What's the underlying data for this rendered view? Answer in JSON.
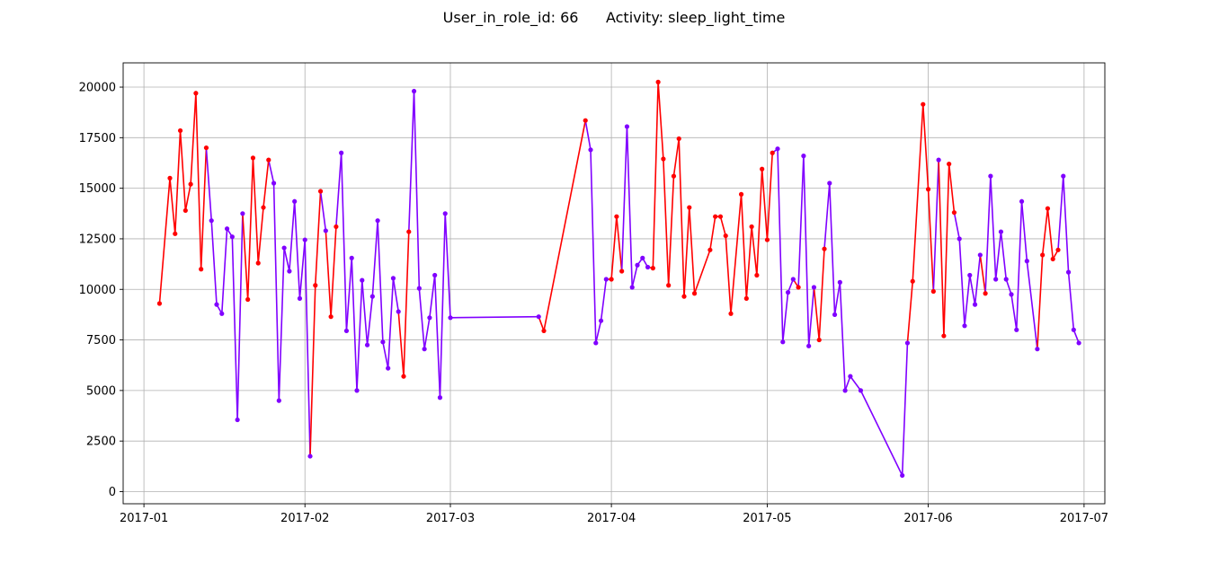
{
  "chart_data": {
    "type": "line",
    "title": "User_in_role_id: 66      Activity: sleep_light_time",
    "xlabel": "",
    "ylabel": "",
    "x_axis": "date",
    "xlim": [
      "2016-12-28",
      "2017-07-05"
    ],
    "ylim": [
      -600,
      21200
    ],
    "grid": true,
    "x_ticks": [
      "2017-01",
      "2017-02",
      "2017-03",
      "2017-04",
      "2017-05",
      "2017-06",
      "2017-07"
    ],
    "y_ticks": [
      0,
      2500,
      5000,
      7500,
      10000,
      12500,
      15000,
      17500,
      20000
    ],
    "colors": {
      "red": "#ff0000",
      "purple": "#8000ff"
    },
    "points": [
      {
        "x": "2017-01-04",
        "y": 9300,
        "c": "red"
      },
      {
        "x": "2017-01-06",
        "y": 15500,
        "c": "red"
      },
      {
        "x": "2017-01-07",
        "y": 12750,
        "c": "red"
      },
      {
        "x": "2017-01-08",
        "y": 17850,
        "c": "red"
      },
      {
        "x": "2017-01-09",
        "y": 13900,
        "c": "red"
      },
      {
        "x": "2017-01-10",
        "y": 15200,
        "c": "red"
      },
      {
        "x": "2017-01-11",
        "y": 19700,
        "c": "red"
      },
      {
        "x": "2017-01-12",
        "y": 11000,
        "c": "red"
      },
      {
        "x": "2017-01-13",
        "y": 17000,
        "c": "red"
      },
      {
        "x": "2017-01-14",
        "y": 13400,
        "c": "purple"
      },
      {
        "x": "2017-01-15",
        "y": 9250,
        "c": "purple"
      },
      {
        "x": "2017-01-16",
        "y": 8800,
        "c": "purple"
      },
      {
        "x": "2017-01-17",
        "y": 13000,
        "c": "purple"
      },
      {
        "x": "2017-01-18",
        "y": 12600,
        "c": "purple"
      },
      {
        "x": "2017-01-19",
        "y": 3550,
        "c": "purple"
      },
      {
        "x": "2017-01-20",
        "y": 13750,
        "c": "purple"
      },
      {
        "x": "2017-01-21",
        "y": 9500,
        "c": "red"
      },
      {
        "x": "2017-01-22",
        "y": 16500,
        "c": "red"
      },
      {
        "x": "2017-01-23",
        "y": 11300,
        "c": "red"
      },
      {
        "x": "2017-01-24",
        "y": 14050,
        "c": "red"
      },
      {
        "x": "2017-01-25",
        "y": 16400,
        "c": "red"
      },
      {
        "x": "2017-01-26",
        "y": 15250,
        "c": "purple"
      },
      {
        "x": "2017-01-27",
        "y": 4500,
        "c": "purple"
      },
      {
        "x": "2017-01-28",
        "y": 12050,
        "c": "purple"
      },
      {
        "x": "2017-01-29",
        "y": 10900,
        "c": "purple"
      },
      {
        "x": "2017-01-30",
        "y": 14350,
        "c": "purple"
      },
      {
        "x": "2017-01-31",
        "y": 9550,
        "c": "purple"
      },
      {
        "x": "2017-02-01",
        "y": 12450,
        "c": "purple"
      },
      {
        "x": "2017-02-02",
        "y": 1750,
        "c": "purple"
      },
      {
        "x": "2017-02-03",
        "y": 10200,
        "c": "red"
      },
      {
        "x": "2017-02-04",
        "y": 14850,
        "c": "red"
      },
      {
        "x": "2017-02-05",
        "y": 12900,
        "c": "purple"
      },
      {
        "x": "2017-02-06",
        "y": 8650,
        "c": "red"
      },
      {
        "x": "2017-02-07",
        "y": 13100,
        "c": "red"
      },
      {
        "x": "2017-02-08",
        "y": 16750,
        "c": "purple"
      },
      {
        "x": "2017-02-09",
        "y": 7950,
        "c": "purple"
      },
      {
        "x": "2017-02-10",
        "y": 11550,
        "c": "purple"
      },
      {
        "x": "2017-02-11",
        "y": 5000,
        "c": "purple"
      },
      {
        "x": "2017-02-12",
        "y": 10450,
        "c": "purple"
      },
      {
        "x": "2017-02-13",
        "y": 7250,
        "c": "purple"
      },
      {
        "x": "2017-02-14",
        "y": 9650,
        "c": "purple"
      },
      {
        "x": "2017-02-15",
        "y": 13400,
        "c": "purple"
      },
      {
        "x": "2017-02-16",
        "y": 7400,
        "c": "purple"
      },
      {
        "x": "2017-02-17",
        "y": 6100,
        "c": "purple"
      },
      {
        "x": "2017-02-18",
        "y": 10550,
        "c": "purple"
      },
      {
        "x": "2017-02-19",
        "y": 8900,
        "c": "purple"
      },
      {
        "x": "2017-02-20",
        "y": 5700,
        "c": "red"
      },
      {
        "x": "2017-02-21",
        "y": 12850,
        "c": "red"
      },
      {
        "x": "2017-02-22",
        "y": 19800,
        "c": "purple"
      },
      {
        "x": "2017-02-23",
        "y": 10050,
        "c": "purple"
      },
      {
        "x": "2017-02-24",
        "y": 7050,
        "c": "purple"
      },
      {
        "x": "2017-02-25",
        "y": 8600,
        "c": "purple"
      },
      {
        "x": "2017-02-26",
        "y": 10700,
        "c": "purple"
      },
      {
        "x": "2017-02-27",
        "y": 4650,
        "c": "purple"
      },
      {
        "x": "2017-02-28",
        "y": 13750,
        "c": "purple"
      },
      {
        "x": "2017-03-01",
        "y": 8600,
        "c": "purple"
      },
      {
        "x": "2017-03-18",
        "y": 8650,
        "c": "purple"
      },
      {
        "x": "2017-03-19",
        "y": 7950,
        "c": "red"
      },
      {
        "x": "2017-03-27",
        "y": 18350,
        "c": "red"
      },
      {
        "x": "2017-03-28",
        "y": 16900,
        "c": "purple"
      },
      {
        "x": "2017-03-29",
        "y": 7350,
        "c": "purple"
      },
      {
        "x": "2017-03-30",
        "y": 8450,
        "c": "purple"
      },
      {
        "x": "2017-03-31",
        "y": 10500,
        "c": "purple"
      },
      {
        "x": "2017-04-01",
        "y": 10500,
        "c": "red"
      },
      {
        "x": "2017-04-02",
        "y": 13600,
        "c": "red"
      },
      {
        "x": "2017-04-03",
        "y": 10900,
        "c": "red"
      },
      {
        "x": "2017-04-04",
        "y": 18050,
        "c": "purple"
      },
      {
        "x": "2017-04-05",
        "y": 10100,
        "c": "purple"
      },
      {
        "x": "2017-04-06",
        "y": 11200,
        "c": "purple"
      },
      {
        "x": "2017-04-07",
        "y": 11550,
        "c": "purple"
      },
      {
        "x": "2017-04-08",
        "y": 11100,
        "c": "purple"
      },
      {
        "x": "2017-04-09",
        "y": 11050,
        "c": "red"
      },
      {
        "x": "2017-04-10",
        "y": 20250,
        "c": "red"
      },
      {
        "x": "2017-04-11",
        "y": 16450,
        "c": "red"
      },
      {
        "x": "2017-04-12",
        "y": 10200,
        "c": "red"
      },
      {
        "x": "2017-04-13",
        "y": 15600,
        "c": "red"
      },
      {
        "x": "2017-04-14",
        "y": 17450,
        "c": "red"
      },
      {
        "x": "2017-04-15",
        "y": 9650,
        "c": "red"
      },
      {
        "x": "2017-04-16",
        "y": 14050,
        "c": "red"
      },
      {
        "x": "2017-04-17",
        "y": 9800,
        "c": "red"
      },
      {
        "x": "2017-04-20",
        "y": 11950,
        "c": "red"
      },
      {
        "x": "2017-04-21",
        "y": 13600,
        "c": "red"
      },
      {
        "x": "2017-04-22",
        "y": 13600,
        "c": "red"
      },
      {
        "x": "2017-04-23",
        "y": 12650,
        "c": "red"
      },
      {
        "x": "2017-04-24",
        "y": 8800,
        "c": "red"
      },
      {
        "x": "2017-04-26",
        "y": 14700,
        "c": "red"
      },
      {
        "x": "2017-04-27",
        "y": 9550,
        "c": "red"
      },
      {
        "x": "2017-04-28",
        "y": 13100,
        "c": "red"
      },
      {
        "x": "2017-04-29",
        "y": 10700,
        "c": "red"
      },
      {
        "x": "2017-04-30",
        "y": 15950,
        "c": "red"
      },
      {
        "x": "2017-05-01",
        "y": 12450,
        "c": "red"
      },
      {
        "x": "2017-05-02",
        "y": 16750,
        "c": "red"
      },
      {
        "x": "2017-05-03",
        "y": 16950,
        "c": "purple"
      },
      {
        "x": "2017-05-04",
        "y": 7400,
        "c": "purple"
      },
      {
        "x": "2017-05-05",
        "y": 9850,
        "c": "purple"
      },
      {
        "x": "2017-05-06",
        "y": 10500,
        "c": "purple"
      },
      {
        "x": "2017-05-07",
        "y": 10100,
        "c": "red"
      },
      {
        "x": "2017-05-08",
        "y": 16600,
        "c": "purple"
      },
      {
        "x": "2017-05-09",
        "y": 7200,
        "c": "purple"
      },
      {
        "x": "2017-05-10",
        "y": 10100,
        "c": "purple"
      },
      {
        "x": "2017-05-11",
        "y": 7500,
        "c": "red"
      },
      {
        "x": "2017-05-12",
        "y": 12000,
        "c": "red"
      },
      {
        "x": "2017-05-13",
        "y": 15250,
        "c": "purple"
      },
      {
        "x": "2017-05-14",
        "y": 8750,
        "c": "purple"
      },
      {
        "x": "2017-05-15",
        "y": 10350,
        "c": "purple"
      },
      {
        "x": "2017-05-16",
        "y": 5000,
        "c": "purple"
      },
      {
        "x": "2017-05-17",
        "y": 5700,
        "c": "purple"
      },
      {
        "x": "2017-05-19",
        "y": 5000,
        "c": "purple"
      },
      {
        "x": "2017-05-27",
        "y": 800,
        "c": "purple"
      },
      {
        "x": "2017-05-28",
        "y": 7350,
        "c": "purple"
      },
      {
        "x": "2017-05-29",
        "y": 10400,
        "c": "red"
      },
      {
        "x": "2017-05-31",
        "y": 19150,
        "c": "red"
      },
      {
        "x": "2017-06-01",
        "y": 14950,
        "c": "red"
      },
      {
        "x": "2017-06-02",
        "y": 9900,
        "c": "red"
      },
      {
        "x": "2017-06-03",
        "y": 16400,
        "c": "purple"
      },
      {
        "x": "2017-06-04",
        "y": 7700,
        "c": "red"
      },
      {
        "x": "2017-06-05",
        "y": 16200,
        "c": "red"
      },
      {
        "x": "2017-06-06",
        "y": 13800,
        "c": "red"
      },
      {
        "x": "2017-06-07",
        "y": 12500,
        "c": "purple"
      },
      {
        "x": "2017-06-08",
        "y": 8200,
        "c": "purple"
      },
      {
        "x": "2017-06-09",
        "y": 10700,
        "c": "purple"
      },
      {
        "x": "2017-06-10",
        "y": 9250,
        "c": "purple"
      },
      {
        "x": "2017-06-11",
        "y": 11700,
        "c": "purple"
      },
      {
        "x": "2017-06-12",
        "y": 9800,
        "c": "red"
      },
      {
        "x": "2017-06-13",
        "y": 15600,
        "c": "purple"
      },
      {
        "x": "2017-06-14",
        "y": 10500,
        "c": "purple"
      },
      {
        "x": "2017-06-15",
        "y": 12850,
        "c": "purple"
      },
      {
        "x": "2017-06-16",
        "y": 10500,
        "c": "purple"
      },
      {
        "x": "2017-06-17",
        "y": 9750,
        "c": "purple"
      },
      {
        "x": "2017-06-18",
        "y": 8000,
        "c": "purple"
      },
      {
        "x": "2017-06-19",
        "y": 14350,
        "c": "purple"
      },
      {
        "x": "2017-06-20",
        "y": 11400,
        "c": "purple"
      },
      {
        "x": "2017-06-22",
        "y": 7050,
        "c": "purple"
      },
      {
        "x": "2017-06-23",
        "y": 11700,
        "c": "red"
      },
      {
        "x": "2017-06-24",
        "y": 14000,
        "c": "red"
      },
      {
        "x": "2017-06-25",
        "y": 11500,
        "c": "red"
      },
      {
        "x": "2017-06-26",
        "y": 11950,
        "c": "red"
      },
      {
        "x": "2017-06-27",
        "y": 15600,
        "c": "purple"
      },
      {
        "x": "2017-06-28",
        "y": 10850,
        "c": "purple"
      },
      {
        "x": "2017-06-29",
        "y": 8000,
        "c": "purple"
      },
      {
        "x": "2017-06-30",
        "y": 7350,
        "c": "purple"
      }
    ]
  }
}
